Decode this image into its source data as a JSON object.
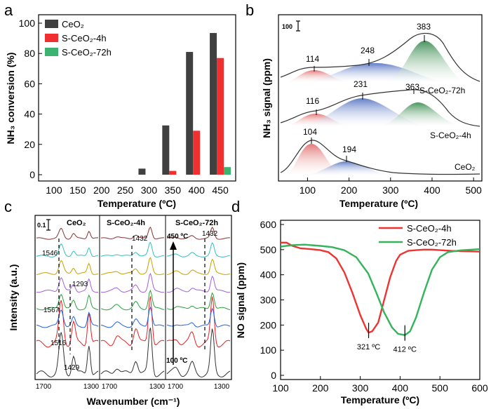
{
  "chart_data": [
    {
      "panel": "a",
      "type": "bar",
      "xlabel": "Temperature (ºC)",
      "ylabel": "NH₃ conversion (%)",
      "categories": [
        "100",
        "150",
        "200",
        "250",
        "300",
        "350",
        "400",
        "450"
      ],
      "ylim": [
        0,
        100
      ],
      "yticks": [
        0,
        20,
        40,
        60,
        80,
        100
      ],
      "series": [
        {
          "name": "CeO₂",
          "color": "#404040",
          "values": [
            0,
            0,
            0,
            0,
            4,
            32.5,
            81,
            93.5
          ]
        },
        {
          "name": "S-CeO₂-4h",
          "color": "#f03030",
          "values": [
            0,
            0,
            0,
            0,
            0,
            2.5,
            29,
            77
          ]
        },
        {
          "name": "S-CeO₂-72h",
          "color": "#3cb371",
          "values": [
            0,
            0,
            0,
            0,
            0,
            0,
            0,
            5
          ]
        }
      ],
      "legend": "top-left"
    },
    {
      "panel": "b",
      "type": "area",
      "xlabel": "Temperature (ºC)",
      "ylabel": "NH₃ signal (ppm)",
      "xlim": [
        30,
        520
      ],
      "xticks": [
        100,
        200,
        300,
        400,
        500
      ],
      "scale_bar": "100",
      "series": [
        {
          "name": "S-CeO₂-72h",
          "peaks": [
            114,
            248,
            383
          ]
        },
        {
          "name": "S-CeO₂-4h",
          "peaks": [
            116,
            231,
            363
          ]
        },
        {
          "name": "CeO₂",
          "peaks": [
            104,
            194
          ]
        }
      ]
    },
    {
      "panel": "c",
      "type": "line",
      "xlabel": "Wavenumber (cm⁻¹)",
      "ylabel": "Intensity (a.u.)",
      "subpanels": [
        "CeO₂",
        "S-CeO₂-4h",
        "S-CeO₂-72h"
      ],
      "xticks": [
        "1700",
        "1300",
        "1700",
        "1300",
        "1700",
        "1300"
      ],
      "scale_bar": "0.1",
      "annotations": [
        "1546",
        "1293",
        "1567",
        "1516",
        "1429",
        "1432",
        "1432",
        "450 ºC",
        "100 ºC"
      ]
    },
    {
      "panel": "d",
      "type": "line",
      "xlabel": "Temperature (ºC)",
      "ylabel": "NO signal (ppm)",
      "xlim": [
        100,
        600
      ],
      "ylim": [
        0,
        600
      ],
      "xticks": [
        100,
        200,
        300,
        400,
        500,
        600
      ],
      "yticks": [
        0,
        100,
        200,
        300,
        400,
        500,
        600
      ],
      "legend": "top-right",
      "series": [
        {
          "name": "S-CeO₂-4h",
          "color": "#ee3333",
          "x": [
            100,
            115,
            130,
            150,
            175,
            200,
            220,
            240,
            260,
            280,
            300,
            315,
            321,
            330,
            345,
            360,
            375,
            390,
            400,
            420,
            440,
            460,
            480,
            500,
            530,
            560,
            600
          ],
          "y": [
            528,
            528,
            515,
            505,
            502,
            498,
            490,
            465,
            410,
            330,
            240,
            185,
            170,
            175,
            210,
            300,
            390,
            455,
            480,
            495,
            498,
            500,
            500,
            498,
            495,
            494,
            492
          ]
        },
        {
          "name": "S-CeO₂-72h",
          "color": "#33b35a",
          "x": [
            100,
            130,
            160,
            200,
            230,
            260,
            290,
            320,
            340,
            360,
            380,
            395,
            412,
            425,
            440,
            460,
            480,
            500,
            520,
            550,
            580,
            600
          ],
          "y": [
            512,
            518,
            520,
            515,
            510,
            498,
            470,
            405,
            330,
            250,
            190,
            165,
            160,
            175,
            230,
            330,
            420,
            470,
            490,
            497,
            500,
            502
          ]
        }
      ],
      "annotations": [
        "321 ºC",
        "412 ºC"
      ]
    }
  ],
  "panel_labels": [
    "a",
    "b",
    "c",
    "d"
  ]
}
